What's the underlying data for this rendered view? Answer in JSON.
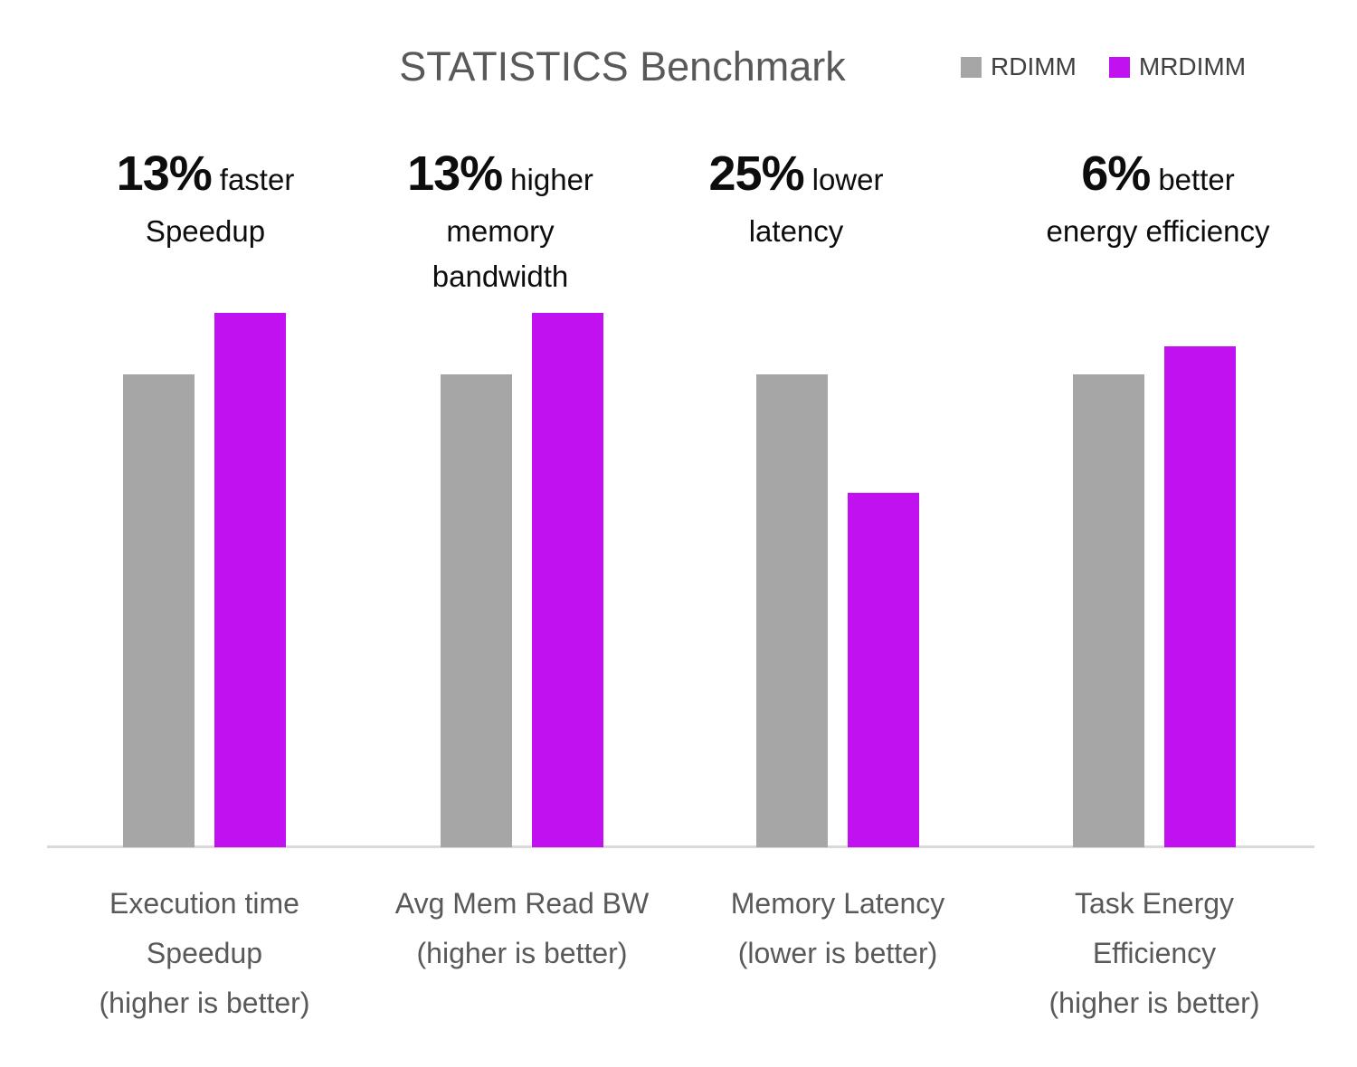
{
  "title": "STATISTICS Benchmark",
  "colors": {
    "rdimm": "#A6A6A6",
    "mrdimm": "#C211F0",
    "title_text": "#595959",
    "category_text": "#595959",
    "legend_text": "#404040",
    "annotation_text": "#0D0D0D",
    "axis_line": "#D9D9D9",
    "background": "#FFFFFF"
  },
  "legend": {
    "items": [
      {
        "label": "RDIMM",
        "color": "#A6A6A6"
      },
      {
        "label": "MRDIMM",
        "color": "#C211F0"
      }
    ]
  },
  "chart_data": {
    "type": "bar",
    "title": "STATISTICS Benchmark",
    "categories": [
      "Execution time Speedup (higher is better)",
      "Avg Mem Read BW (higher is better)",
      "Memory Latency (lower is better)",
      "Task Energy Efficiency (higher is better)"
    ],
    "category_lines": [
      [
        "Execution time",
        "Speedup",
        "(higher is better)"
      ],
      [
        "Avg Mem Read BW",
        "(higher is better)"
      ],
      [
        "Memory Latency",
        "(lower is better)"
      ],
      [
        "Task Energy",
        "Efficiency",
        "(higher is better)"
      ]
    ],
    "series": [
      {
        "name": "RDIMM",
        "color": "#A6A6A6",
        "values": [
          1.0,
          1.0,
          1.0,
          1.0
        ]
      },
      {
        "name": "MRDIMM",
        "color": "#C211F0",
        "values": [
          1.13,
          1.13,
          0.75,
          1.06
        ]
      }
    ],
    "value_basis": "values normalized to RDIMM = 1.0; no numeric axis shown",
    "ylim": [
      0,
      1.2
    ],
    "grid": false,
    "legend_position": "top-right",
    "legend_entries": [
      "RDIMM",
      "MRDIMM"
    ],
    "annotations": [
      {
        "headline": "13%",
        "qualifier": "faster",
        "detail_lines": [
          "Speedup"
        ]
      },
      {
        "headline": "13%",
        "qualifier": "higher",
        "detail_lines": [
          "memory",
          "bandwidth"
        ]
      },
      {
        "headline": "25%",
        "qualifier": "lower",
        "detail_lines": [
          "latency"
        ]
      },
      {
        "headline": "6%",
        "qualifier": "better",
        "detail_lines": [
          "energy efficiency"
        ]
      }
    ]
  }
}
